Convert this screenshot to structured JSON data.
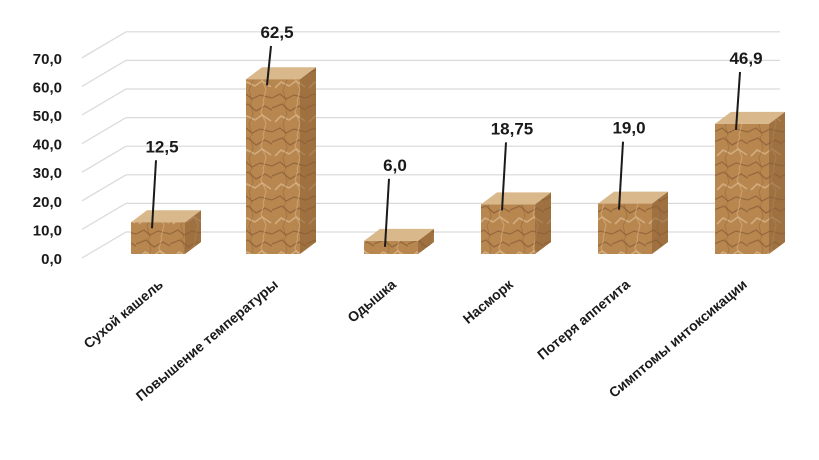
{
  "chart_data": {
    "type": "bar",
    "style": "3d-column",
    "categories": [
      "Сухой кашель",
      "Повышение температуры",
      "Одышка",
      "Насморк",
      "Потеря аппетита",
      "Симптомы интоксикации"
    ],
    "values": [
      12.5,
      62.5,
      6.0,
      18.75,
      19.0,
      46.9
    ],
    "data_labels": [
      "12,5",
      "62,5",
      "6,0",
      "18,75",
      "19,0",
      "46,9"
    ],
    "y_ticks": [
      "0,0",
      "10,0",
      "20,0",
      "30,0",
      "40,0",
      "50,0",
      "60,0",
      "70,0"
    ],
    "ylim": [
      0,
      70
    ],
    "grid": true,
    "legend": "none",
    "colors": {
      "bar_front": "#b8864f",
      "bar_top": "#d9b98c",
      "bar_side": "#8a5f35",
      "grid": "#d9d9d9",
      "leader": "#1a1a1a"
    }
  }
}
